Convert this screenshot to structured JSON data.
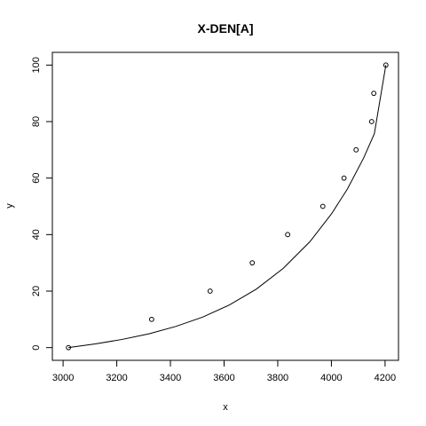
{
  "chart_data": {
    "type": "scatter",
    "title": "X-DEN[A]",
    "xlabel": "x",
    "ylabel": "y",
    "xlim": [
      2960,
      4250
    ],
    "ylim": [
      -4.5,
      104.5
    ],
    "xticks": [
      3000,
      3200,
      3400,
      3600,
      3800,
      4000,
      4200
    ],
    "yticks": [
      0,
      20,
      40,
      60,
      80,
      100
    ],
    "grid": false,
    "legend": "none",
    "points": {
      "x": [
        3020,
        3330,
        3548,
        3705,
        3837,
        3968,
        4047,
        4092,
        4150,
        4158,
        4203
      ],
      "y": [
        0,
        10,
        20,
        30,
        40,
        50,
        60,
        70,
        80,
        90,
        100
      ]
    },
    "fit_curve": {
      "x": [
        3020,
        3120,
        3220,
        3320,
        3420,
        3520,
        3620,
        3720,
        3820,
        3920,
        4000,
        4060,
        4120,
        4160,
        4203
      ],
      "y": [
        0,
        1.3,
        2.9,
        4.9,
        7.5,
        10.8,
        15.1,
        20.7,
        28.0,
        37.5,
        47.3,
        56.2,
        67.1,
        75.7,
        100
      ]
    }
  }
}
